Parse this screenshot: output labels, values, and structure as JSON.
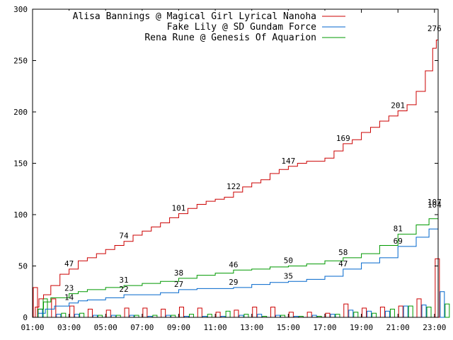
{
  "chart_data": {
    "type": "line",
    "title": "",
    "xlabel": "",
    "ylabel": "",
    "xlim": [
      1,
      23.2
    ],
    "ylim": [
      0,
      300
    ],
    "x_ticks": [
      {
        "v": 1,
        "label": "01:00"
      },
      {
        "v": 3,
        "label": "03:00"
      },
      {
        "v": 5,
        "label": "05:00"
      },
      {
        "v": 7,
        "label": "07:00"
      },
      {
        "v": 9,
        "label": "09:00"
      },
      {
        "v": 11,
        "label": "11:00"
      },
      {
        "v": 13,
        "label": "13:00"
      },
      {
        "v": 15,
        "label": "15:00"
      },
      {
        "v": 17,
        "label": "17:00"
      },
      {
        "v": 19,
        "label": "19:00"
      },
      {
        "v": 21,
        "label": "21:00"
      },
      {
        "v": 23,
        "label": "23:00"
      }
    ],
    "y_ticks": [
      {
        "v": 0,
        "label": "0"
      },
      {
        "v": 50,
        "label": "50"
      },
      {
        "v": 100,
        "label": "100"
      },
      {
        "v": 150,
        "label": "150"
      },
      {
        "v": 200,
        "label": "200"
      },
      {
        "v": 250,
        "label": "250"
      },
      {
        "v": 300,
        "label": "300"
      }
    ],
    "grid": false,
    "legend_position": "top-right",
    "series": [
      {
        "name": "Alisa Bannings @ Magical Girl Lyrical Nanoha",
        "color": "#cc0000",
        "points": [
          [
            1.0,
            0
          ],
          [
            1.15,
            10
          ],
          [
            1.35,
            18
          ],
          [
            1.6,
            22
          ],
          [
            2.0,
            31
          ],
          [
            2.5,
            42
          ],
          [
            3.0,
            47
          ],
          [
            3.5,
            55
          ],
          [
            4.0,
            58
          ],
          [
            4.5,
            62
          ],
          [
            5.0,
            66
          ],
          [
            5.5,
            70
          ],
          [
            6.0,
            74
          ],
          [
            6.5,
            80
          ],
          [
            7.0,
            84
          ],
          [
            7.5,
            88
          ],
          [
            8.0,
            92
          ],
          [
            8.5,
            97
          ],
          [
            9.0,
            101
          ],
          [
            9.5,
            106
          ],
          [
            10.0,
            110
          ],
          [
            10.5,
            113
          ],
          [
            11.0,
            115
          ],
          [
            11.5,
            117
          ],
          [
            12.0,
            122
          ],
          [
            12.5,
            127
          ],
          [
            13.0,
            131
          ],
          [
            13.5,
            134
          ],
          [
            14.0,
            140
          ],
          [
            14.5,
            144
          ],
          [
            15.0,
            147
          ],
          [
            15.5,
            150
          ],
          [
            16.0,
            152
          ],
          [
            16.5,
            152
          ],
          [
            17.0,
            155
          ],
          [
            17.5,
            162
          ],
          [
            18.0,
            169
          ],
          [
            18.5,
            173
          ],
          [
            19.0,
            180
          ],
          [
            19.5,
            185
          ],
          [
            20.0,
            191
          ],
          [
            20.5,
            196
          ],
          [
            21.0,
            201
          ],
          [
            21.5,
            207
          ],
          [
            22.0,
            220
          ],
          [
            22.5,
            240
          ],
          [
            22.9,
            262
          ],
          [
            23.1,
            270
          ],
          [
            23.2,
            276
          ]
        ],
        "labels": [
          {
            "x": 3.0,
            "y": 47,
            "text": "47"
          },
          {
            "x": 6.0,
            "y": 74,
            "text": "74"
          },
          {
            "x": 9.0,
            "y": 101,
            "text": "101"
          },
          {
            "x": 12.0,
            "y": 122,
            "text": "122"
          },
          {
            "x": 15.0,
            "y": 147,
            "text": "147"
          },
          {
            "x": 18.0,
            "y": 169,
            "text": "169"
          },
          {
            "x": 21.0,
            "y": 201,
            "text": "201"
          },
          {
            "x": 23.0,
            "y": 276,
            "text": "276"
          }
        ]
      },
      {
        "name": "Fake Lily @ SD Gundam Force",
        "color": "#0066cc",
        "points": [
          [
            1.0,
            0
          ],
          [
            1.3,
            4
          ],
          [
            1.7,
            8
          ],
          [
            2.2,
            11
          ],
          [
            3.0,
            14
          ],
          [
            3.5,
            16
          ],
          [
            4.0,
            17
          ],
          [
            5.0,
            19
          ],
          [
            6.0,
            22
          ],
          [
            7.0,
            22
          ],
          [
            8.0,
            24
          ],
          [
            9.0,
            27
          ],
          [
            10.0,
            28
          ],
          [
            11.0,
            28
          ],
          [
            12.0,
            29
          ],
          [
            13.0,
            32
          ],
          [
            14.0,
            34
          ],
          [
            15.0,
            35
          ],
          [
            16.0,
            37
          ],
          [
            17.0,
            40
          ],
          [
            18.0,
            47
          ],
          [
            19.0,
            53
          ],
          [
            20.0,
            58
          ],
          [
            21.0,
            69
          ],
          [
            22.0,
            78
          ],
          [
            22.7,
            86
          ],
          [
            23.2,
            104
          ]
        ],
        "labels": [
          {
            "x": 3.0,
            "y": 14,
            "text": "14"
          },
          {
            "x": 6.0,
            "y": 22,
            "text": "22"
          },
          {
            "x": 9.0,
            "y": 27,
            "text": "27"
          },
          {
            "x": 12.0,
            "y": 29,
            "text": "29"
          },
          {
            "x": 15.0,
            "y": 35,
            "text": "35"
          },
          {
            "x": 18.0,
            "y": 47,
            "text": "47"
          },
          {
            "x": 21.0,
            "y": 69,
            "text": "69"
          },
          {
            "x": 23.0,
            "y": 104,
            "text": "104"
          }
        ]
      },
      {
        "name": "Rena Rune @ Genesis Of Aquarion",
        "color": "#009900",
        "points": [
          [
            1.0,
            0
          ],
          [
            1.3,
            8
          ],
          [
            1.6,
            15
          ],
          [
            2.0,
            19
          ],
          [
            3.0,
            23
          ],
          [
            3.5,
            25
          ],
          [
            4.0,
            27
          ],
          [
            5.0,
            29
          ],
          [
            6.0,
            31
          ],
          [
            7.0,
            33
          ],
          [
            8.0,
            35
          ],
          [
            9.0,
            38
          ],
          [
            10.0,
            41
          ],
          [
            11.0,
            43
          ],
          [
            12.0,
            46
          ],
          [
            13.0,
            47
          ],
          [
            14.0,
            49
          ],
          [
            15.0,
            50
          ],
          [
            16.0,
            52
          ],
          [
            17.0,
            55
          ],
          [
            18.0,
            58
          ],
          [
            19.0,
            62
          ],
          [
            20.0,
            70
          ],
          [
            21.0,
            81
          ],
          [
            22.0,
            90
          ],
          [
            22.7,
            96
          ],
          [
            23.2,
            107
          ]
        ],
        "labels": [
          {
            "x": 3.0,
            "y": 23,
            "text": "23"
          },
          {
            "x": 6.0,
            "y": 31,
            "text": "31"
          },
          {
            "x": 9.0,
            "y": 38,
            "text": "38"
          },
          {
            "x": 12.0,
            "y": 46,
            "text": "46"
          },
          {
            "x": 15.0,
            "y": 50,
            "text": "50"
          },
          {
            "x": 18.0,
            "y": 58,
            "text": "58"
          },
          {
            "x": 21.0,
            "y": 81,
            "text": "81"
          },
          {
            "x": 23.0,
            "y": 107,
            "text": "107"
          }
        ]
      }
    ],
    "hourly_bars": {
      "hours": [
        1,
        2,
        3,
        4,
        5,
        6,
        7,
        8,
        9,
        10,
        11,
        12,
        13,
        14,
        15,
        16,
        17,
        18,
        19,
        20,
        21,
        22,
        23
      ],
      "series": [
        {
          "name": "Alisa Bannings @ Magical Girl Lyrical Nanoha",
          "color": "#cc0000",
          "values": [
            29,
            18,
            11,
            8,
            7,
            9,
            9,
            8,
            10,
            9,
            5,
            7,
            10,
            10,
            5,
            5,
            4,
            13,
            9,
            10,
            11,
            18,
            57
          ]
        },
        {
          "name": "Fake Lily @ SD Gundam Force",
          "color": "#0066cc",
          "values": [
            8,
            3,
            3,
            2,
            2,
            2,
            1,
            2,
            1,
            1,
            1,
            2,
            3,
            2,
            1,
            2,
            3,
            7,
            6,
            6,
            11,
            12,
            25
          ]
        },
        {
          "name": "Rena Rune @ Genesis Of Aquarion",
          "color": "#009900",
          "values": [
            18,
            4,
            4,
            2,
            2,
            2,
            2,
            2,
            3,
            3,
            6,
            3,
            1,
            2,
            1,
            1,
            3,
            5,
            4,
            8,
            11,
            10,
            13
          ]
        }
      ]
    }
  }
}
